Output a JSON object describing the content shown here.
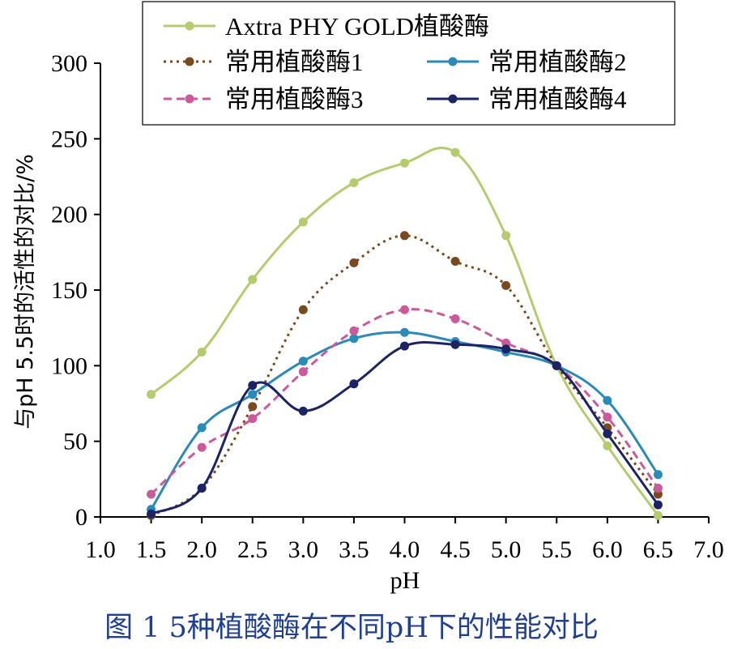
{
  "chart_data": {
    "type": "line",
    "title": "",
    "xlabel": "pH",
    "ylabel": "与pH 5.5时的活性的对比/%",
    "caption": "图 1  5种植酸酶在不同pH下的性能对比",
    "xlim": [
      1.0,
      7.0
    ],
    "ylim": [
      0,
      300
    ],
    "x_ticks": [
      "1.0",
      "1.5",
      "2.0",
      "2.5",
      "3.0",
      "3.5",
      "4.0",
      "4.5",
      "5.0",
      "5.5",
      "6.0",
      "6.5",
      "7.0"
    ],
    "y_ticks": [
      "0",
      "50",
      "100",
      "150",
      "200",
      "250",
      "300"
    ],
    "grid": false,
    "legend_position": "top",
    "series": [
      {
        "name": "Axtra PHY GOLD植酸酶",
        "color": "#b5cc6e",
        "dash": "solid",
        "x": [
          1.5,
          2.0,
          2.5,
          3.0,
          3.5,
          4.0,
          4.5,
          5.0,
          5.5,
          6.0,
          6.5
        ],
        "values": [
          81,
          109,
          157,
          195,
          221,
          234,
          241,
          186,
          100,
          47,
          1
        ]
      },
      {
        "name": "常用植酸酶1",
        "color": "#7a4a1e",
        "dash": "dotted",
        "x": [
          1.5,
          2.0,
          2.5,
          3.0,
          3.5,
          4.0,
          4.5,
          5.0,
          5.5,
          6.0,
          6.5
        ],
        "values": [
          1,
          19,
          73,
          137,
          168,
          186,
          169,
          153,
          100,
          59,
          15
        ]
      },
      {
        "name": "常用植酸酶2",
        "color": "#2a8ab8",
        "dash": "solid",
        "x": [
          1.5,
          2.0,
          2.5,
          3.0,
          3.5,
          4.0,
          4.5,
          5.0,
          5.5,
          6.0,
          6.5
        ],
        "values": [
          5,
          59,
          81,
          103,
          118,
          122,
          116,
          109,
          100,
          77,
          28
        ]
      },
      {
        "name": "常用植酸酶3",
        "color": "#cc5a9b",
        "dash": "dashed",
        "x": [
          1.5,
          2.0,
          2.5,
          3.0,
          3.5,
          4.0,
          4.5,
          5.0,
          5.5,
          6.0,
          6.5
        ],
        "values": [
          15,
          46,
          65,
          96,
          123,
          137,
          131,
          115,
          100,
          66,
          19
        ]
      },
      {
        "name": "常用植酸酶4",
        "color": "#1c2466",
        "dash": "solid",
        "x": [
          1.5,
          2.0,
          2.5,
          3.0,
          3.5,
          4.0,
          4.5,
          5.0,
          5.5,
          6.0,
          6.5
        ],
        "values": [
          2,
          19,
          87,
          70,
          88,
          113,
          114,
          111,
          100,
          55,
          8
        ]
      }
    ]
  }
}
